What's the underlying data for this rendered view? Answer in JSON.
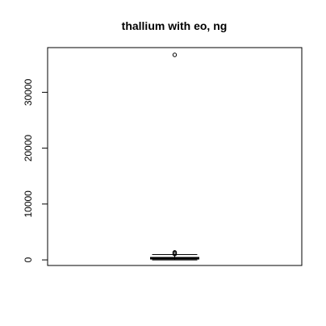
{
  "chart_data": {
    "type": "boxplot",
    "title": "thallium with eo, ng",
    "xlabel": "",
    "ylabel": "",
    "y_ticks": [
      0,
      10000,
      20000,
      30000
    ],
    "y_tick_labels": [
      "0",
      "10000",
      "20000",
      "30000"
    ],
    "ylim": [
      -1000,
      38000
    ],
    "box": {
      "min": 0,
      "q1": 150,
      "median": 300,
      "q3": 450,
      "max": 950
    },
    "outliers": [
      1050,
      1200,
      1350,
      36700
    ],
    "grid": false,
    "legend": "none",
    "colors": {
      "stroke": "#000000",
      "background": "#ffffff"
    }
  }
}
